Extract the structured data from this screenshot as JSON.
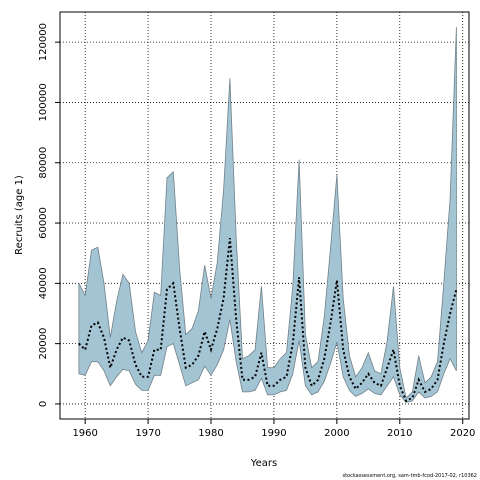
{
  "chart_data": {
    "type": "area",
    "xlabel": "Years",
    "ylabel": "Recruits (age 1)",
    "xlim": [
      1956,
      2021
    ],
    "ylim": [
      -5000,
      130000
    ],
    "x_ticks": [
      1960,
      1970,
      1980,
      1990,
      2000,
      2010,
      2020
    ],
    "y_ticks": [
      0,
      20000,
      40000,
      60000,
      80000,
      100000,
      120000
    ],
    "grid": true,
    "footnote": "stockassessment.org, sam-tmb-fcod-2017-02, r10362",
    "colors": {
      "band": "#a3c4d3",
      "band_edge": "#70808a",
      "estimate": "#000000"
    },
    "years": [
      1959,
      1960,
      1961,
      1962,
      1963,
      1964,
      1965,
      1966,
      1967,
      1968,
      1969,
      1970,
      1971,
      1972,
      1973,
      1974,
      1975,
      1976,
      1977,
      1978,
      1979,
      1980,
      1981,
      1982,
      1983,
      1984,
      1985,
      1986,
      1987,
      1988,
      1989,
      1990,
      1991,
      1992,
      1993,
      1994,
      1995,
      1996,
      1997,
      1998,
      1999,
      2000,
      2001,
      2002,
      2003,
      2004,
      2005,
      2006,
      2007,
      2008,
      2009,
      2010,
      2011,
      2012,
      2013,
      2014,
      2015,
      2016,
      2017,
      2018,
      2019
    ],
    "series": [
      {
        "name": "Estimate",
        "values": [
          20000,
          18000,
          26000,
          27000,
          22000,
          12000,
          18000,
          22000,
          21000,
          13000,
          9000,
          9000,
          18000,
          18000,
          38000,
          40000,
          25000,
          12000,
          13000,
          16000,
          24000,
          18000,
          25000,
          35000,
          55000,
          28000,
          8000,
          8000,
          9000,
          17000,
          6000,
          6000,
          8000,
          9000,
          20000,
          42000,
          12000,
          6000,
          8000,
          15000,
          27000,
          41000,
          18000,
          9000,
          5000,
          7000,
          10000,
          7000,
          6000,
          12000,
          18000,
          6000,
          1000,
          2000,
          8000,
          4000,
          5000,
          8000,
          20000,
          30000,
          38000
        ]
      },
      {
        "name": "Upper",
        "values": [
          40000,
          36000,
          51000,
          52000,
          40000,
          22000,
          34000,
          43000,
          40000,
          24000,
          17000,
          21000,
          37000,
          36000,
          75000,
          77000,
          45000,
          23000,
          25000,
          31000,
          46000,
          35000,
          47000,
          71000,
          108000,
          55000,
          15000,
          16000,
          18000,
          39000,
          12000,
          12000,
          15000,
          17000,
          39000,
          81000,
          23000,
          12000,
          14000,
          29000,
          52000,
          76000,
          35000,
          16000,
          9000,
          12000,
          17000,
          11000,
          10000,
          21000,
          39000,
          12000,
          2000,
          4000,
          16000,
          7000,
          9000,
          14000,
          40000,
          68000,
          125000
        ]
      },
      {
        "name": "Lower",
        "values": [
          10000,
          9500,
          14000,
          14000,
          11000,
          6000,
          9000,
          11500,
          11000,
          6500,
          4500,
          4500,
          9500,
          9500,
          19000,
          20000,
          13000,
          6000,
          7000,
          8000,
          12500,
          9500,
          13000,
          18000,
          28000,
          14000,
          4000,
          4000,
          4500,
          8500,
          3000,
          3000,
          4000,
          4500,
          10000,
          21000,
          6000,
          3000,
          4000,
          7500,
          13500,
          20500,
          9000,
          4500,
          2500,
          3500,
          5000,
          3500,
          3000,
          6000,
          9000,
          3000,
          500,
          1000,
          4000,
          2000,
          2500,
          4000,
          10000,
          15000,
          11000
        ]
      }
    ]
  }
}
